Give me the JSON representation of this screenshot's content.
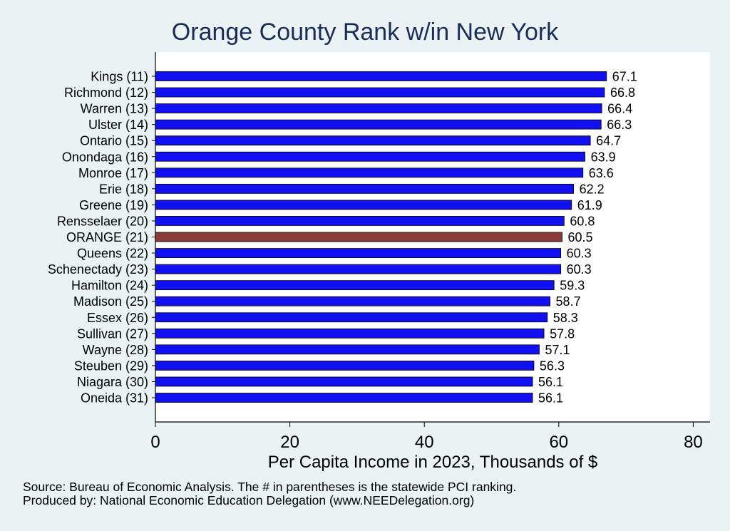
{
  "chart_data": {
    "type": "bar",
    "orientation": "horizontal",
    "title": "Orange County Rank w/in New York",
    "xlabel": "Per Capita Income in 2023, Thousands of $",
    "ylabel": "",
    "xlim": [
      0,
      82.5
    ],
    "xticks": [
      0,
      20,
      40,
      60,
      80
    ],
    "grid": false,
    "categories": [
      "Kings (11)",
      "Richmond (12)",
      "Warren (13)",
      "Ulster (14)",
      "Ontario (15)",
      "Onondaga (16)",
      "Monroe (17)",
      "Erie (18)",
      "Greene (19)",
      "Rensselaer (20)",
      "ORANGE (21)",
      "Queens (22)",
      "Schenectady (23)",
      "Hamilton (24)",
      "Madison (25)",
      "Essex (26)",
      "Sullivan (27)",
      "Wayne (28)",
      "Steuben (29)",
      "Niagara (30)",
      "Oneida (31)"
    ],
    "values": [
      67.1,
      66.8,
      66.4,
      66.3,
      64.7,
      63.9,
      63.6,
      62.2,
      61.9,
      60.8,
      60.5,
      60.3,
      60.3,
      59.3,
      58.7,
      58.3,
      57.8,
      57.1,
      56.3,
      56.1,
      56.1
    ],
    "value_labels": [
      "67.1",
      "66.8",
      "66.4",
      "66.3",
      "64.7",
      "63.9",
      "63.6",
      "62.2",
      "61.9",
      "60.8",
      "60.5",
      "60.3",
      "60.3",
      "59.3",
      "58.7",
      "58.3",
      "57.8",
      "57.1",
      "56.3",
      "56.1",
      "56.1"
    ],
    "highlight_category": "ORANGE (21)",
    "colors": {
      "bar": "#1010f0",
      "highlight": "#8b3a3a",
      "title": "#1a2d5a",
      "plot_bg": "#ffffff",
      "page_bg": "#eaf2f3"
    }
  },
  "notes": {
    "source": "Source: Bureau of Economic Analysis. The # in parentheses is the statewide PCI ranking.",
    "producer": "Produced by: National Economic Education Delegation (www.NEEDelegation.org)"
  }
}
